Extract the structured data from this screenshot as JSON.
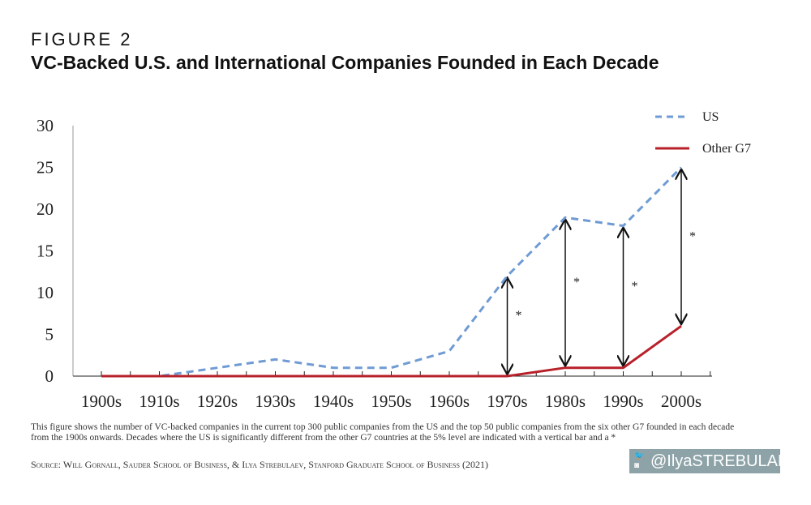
{
  "header": {
    "figure_label": "FIGURE 2",
    "title": "VC-Backed U.S. and International Companies Founded in Each Decade"
  },
  "chart_data": {
    "type": "line",
    "categories": [
      "1900s",
      "1910s",
      "1920s",
      "1930s",
      "1940s",
      "1950s",
      "1960s",
      "1970s",
      "1980s",
      "1990s",
      "2000s"
    ],
    "series": [
      {
        "name": "US",
        "values": [
          0,
          0,
          1,
          2,
          1,
          1,
          3,
          12,
          19,
          18,
          25
        ],
        "color": "#6f9bd4",
        "style": "dashed"
      },
      {
        "name": "Other G7",
        "values": [
          0,
          0,
          0,
          0,
          0,
          0,
          0,
          0,
          1,
          1,
          6
        ],
        "color": "#b8202a",
        "style": "solid"
      }
    ],
    "yticks": [
      0,
      5,
      10,
      15,
      20,
      25,
      30
    ],
    "ylim": [
      0,
      30
    ],
    "significance_marker": "*",
    "significant_decades": [
      "1970s",
      "1980s",
      "1990s",
      "2000s"
    ],
    "legend_placement": "top-right",
    "grid": false
  },
  "caption": "This figure shows the number of VC-backed companies in the current top 300 public companies from the US and the top 50 public companies from the six other G7 founded in each decade from the 1900s onwards. Decades where the US is significantly different from the other G7 countries at the 5% level are indicated with a vertical bar and a *",
  "source": "Source: Will Gornall, Sauder School of Business, & Ilya Strebulaev, Stanford Graduate School of Business (2021)",
  "badge": {
    "handle": "@IlyaSTREBULAEV",
    "icons": [
      "twitter-icon",
      "instagram-icon"
    ]
  }
}
